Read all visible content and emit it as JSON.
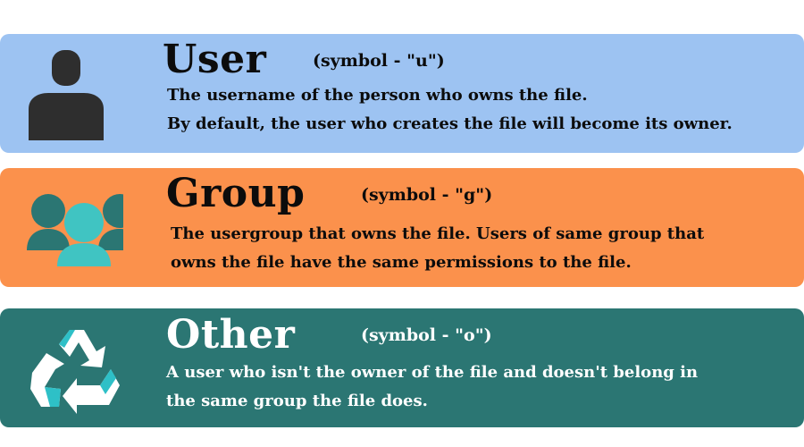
{
  "colors": {
    "user_bg": "#9dc3f2",
    "group_bg": "#fb914c",
    "other_bg": "#2b7673",
    "dark_text": "#0c0c0c",
    "light_text": "#ffffff",
    "user_icon": "#2e2e2e",
    "group_icon_back": "#2b7673",
    "group_icon_front": "#40c4c2",
    "recycle_white": "#ffffff",
    "recycle_teal": "#2ec0c7"
  },
  "cards": [
    {
      "key": "user",
      "title": "User",
      "symbol": "(symbol - \"u\")",
      "lines": [
        "The username of the person who owns the file.",
        "By default, the user who creates the file will become its owner."
      ],
      "icon": "person-icon"
    },
    {
      "key": "group",
      "title": "Group",
      "symbol": "(symbol - \"g\")",
      "lines": [
        "The usergroup that owns the file. Users of same group that",
        "owns the file have the same permissions to the file."
      ],
      "icon": "people-group-icon"
    },
    {
      "key": "other",
      "title": "Other",
      "symbol": "(symbol - \"o\")",
      "lines": [
        "A user who isn't the owner of the file and doesn't belong  in",
        "the same group the file does."
      ],
      "icon": "recycle-icon"
    }
  ]
}
